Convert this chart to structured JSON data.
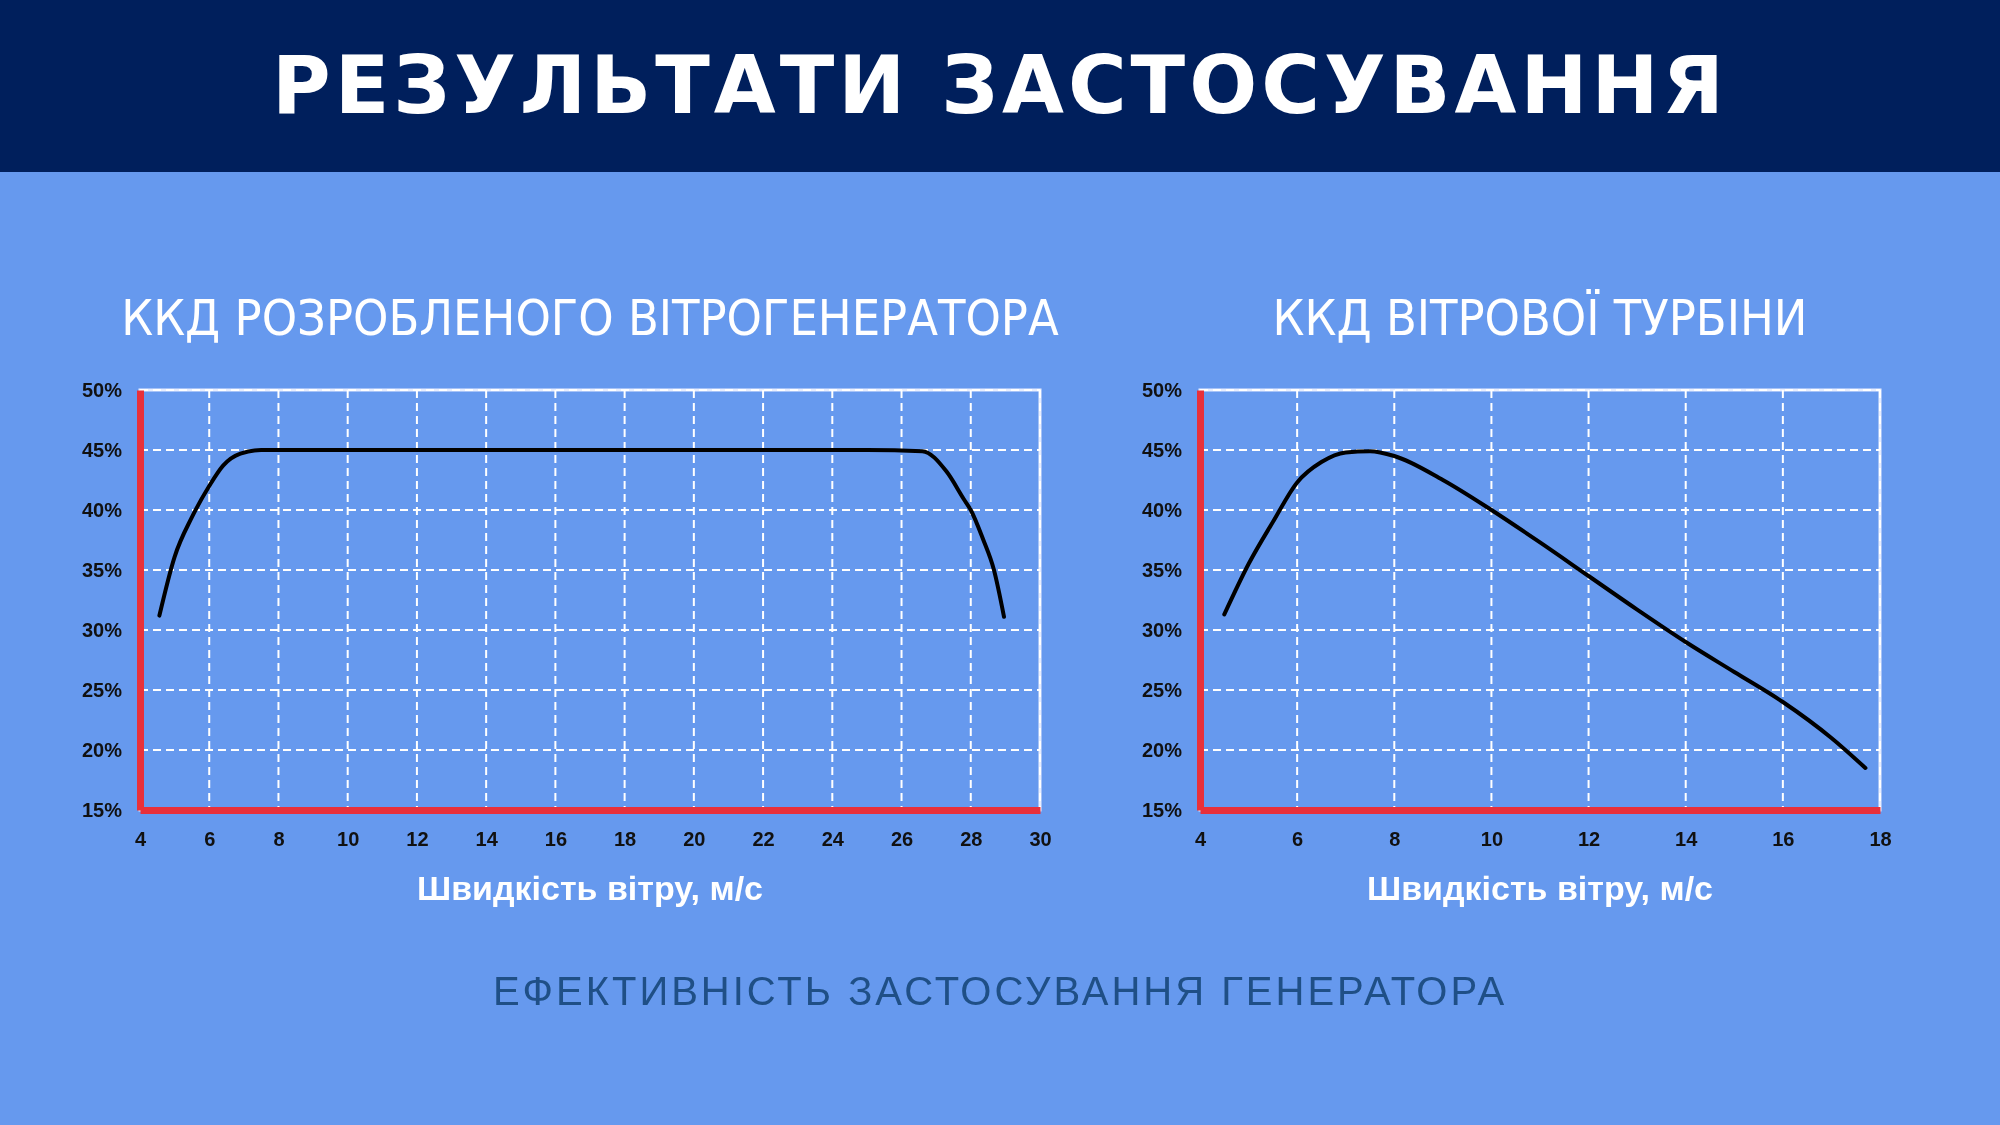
{
  "chart_data": [
    {
      "type": "line",
      "title": "ККД РОЗРОБЛЕНОГО ВІТРОГЕНЕРАТОРА",
      "xlabel": "Швидкість вітру, м/с",
      "annotations": [
        "РЕЗУЛЬТАТИ ЗАСТОСУВАННЯ",
        "ЕФЕКТИВНІСТЬ ЗАСТОСУВАННЯ ГЕНЕРАТОРА"
      ],
      "series": [
        {
          "color": "#000000",
          "x": [
            4.56,
            5.0,
            5.5,
            6.0,
            6.4,
            6.9,
            7.5,
            10,
            15,
            20,
            25,
            26.6,
            27.3,
            27.8,
            28.0,
            28.35,
            28.67,
            28.96
          ],
          "values": [
            31.2,
            36.1,
            39.4,
            42.0,
            43.7,
            44.7,
            45,
            45,
            45,
            45,
            45,
            44.9,
            43.2,
            40.9,
            40.0,
            37.6,
            35.0,
            31.1
          ]
        }
      ],
      "xlim": [
        4,
        30
      ],
      "xticks": [
        4,
        6,
        8,
        10,
        12,
        14,
        16,
        18,
        20,
        22,
        24,
        26,
        28,
        30
      ],
      "ylim": [
        15,
        50
      ],
      "yticks": [
        {
          "value": 15,
          "label": "15%"
        },
        {
          "value": 20,
          "label": "20%"
        },
        {
          "value": 25,
          "label": "25%"
        },
        {
          "value": 30,
          "label": "30%"
        },
        {
          "value": 35,
          "label": "35%"
        },
        {
          "value": 40,
          "label": "40%"
        },
        {
          "value": 45,
          "label": "45%"
        },
        {
          "value": 50,
          "label": "50%"
        }
      ],
      "grid": true,
      "marker": "none",
      "line_style": "solid"
    },
    {
      "type": "line",
      "title": "ККД ВІТРОВОЇ ТУРБІНИ",
      "xlabel": "Швидкість вітру, м/с",
      "series": [
        {
          "color": "#000000",
          "x": [
            4.5,
            5,
            5.5,
            6,
            6.5,
            7,
            7.5,
            8,
            9,
            10,
            11,
            12,
            13,
            14,
            15,
            16,
            17,
            17.7
          ],
          "values": [
            31.3,
            35.5,
            39,
            42.3,
            44,
            44.8,
            44.9,
            44.5,
            42.5,
            40,
            37.3,
            34.5,
            31.7,
            29,
            26.5,
            24,
            21,
            18.5
          ]
        }
      ],
      "xlim": [
        4,
        18
      ],
      "xticks": [
        4,
        6,
        8,
        10,
        12,
        14,
        16,
        18
      ],
      "ylim": [
        15,
        50
      ],
      "yticks": [
        {
          "value": 15,
          "label": "15%"
        },
        {
          "value": 20,
          "label": "20%"
        },
        {
          "value": 25,
          "label": "25%"
        },
        {
          "value": 30,
          "label": "30%"
        },
        {
          "value": 35,
          "label": "35%"
        },
        {
          "value": 40,
          "label": "40%"
        },
        {
          "value": 45,
          "label": "45%"
        },
        {
          "value": 50,
          "label": "50%"
        }
      ],
      "grid": true,
      "marker": "none",
      "line_style": "solid"
    }
  ]
}
